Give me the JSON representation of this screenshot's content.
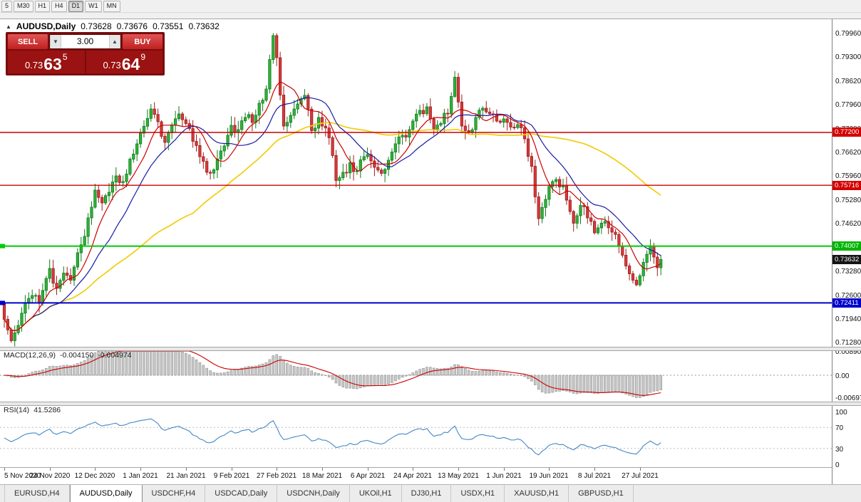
{
  "toolbar": {
    "timeframes": [
      "5",
      "M30",
      "H1",
      "H4",
      "D1",
      "W1",
      "MN"
    ],
    "active": "D1"
  },
  "header": {
    "collapse_icon": "▲",
    "title": "AUDUSD,Daily",
    "open": "0.73628",
    "high": "0.73676",
    "low": "0.73551",
    "close": "0.73632"
  },
  "one_click": {
    "sell_label": "SELL",
    "buy_label": "BUY",
    "volume": "3.00",
    "vol_down_icon": "▼",
    "vol_up_icon": "▲",
    "bid_main": "0.73",
    "bid_big": "63",
    "bid_sup": "5",
    "ask_main": "0.73",
    "ask_big": "64",
    "ask_sup": "9"
  },
  "price_axis": {
    "labels": [
      "0.79960",
      "0.79300",
      "0.78620",
      "0.77960",
      "0.77280",
      "0.76620",
      "0.75960",
      "0.75280",
      "0.74620",
      "0.73960",
      "0.73280",
      "0.72600",
      "0.71940",
      "0.71280"
    ],
    "tags": [
      {
        "text": "0.77200",
        "color": "#d40000"
      },
      {
        "text": "0.75716",
        "color": "#d40000"
      },
      {
        "text": "0.74007",
        "color": "#00b400"
      },
      {
        "text": "0.73632",
        "color": "#141414"
      },
      {
        "text": "0.72411",
        "color": "#0000cc"
      }
    ]
  },
  "macd_panel": {
    "title": "MACD(12,26,9)",
    "value_main": "-0.004150",
    "value_signal": "-0.004974",
    "axis_labels": [
      "0.008900",
      "0.00",
      "-0.00697"
    ]
  },
  "rsi_panel": {
    "title": "RSI(14)",
    "value": "41.5286",
    "axis_labels": [
      "100",
      "70",
      "30",
      "0"
    ]
  },
  "date_axis": {
    "labels": [
      "5 Nov 2020",
      "24 Nov 2020",
      "12 Dec 2020",
      "1 Jan 2021",
      "21 Jan 2021",
      "9 Feb 2021",
      "27 Feb 2021",
      "18 Mar 2021",
      "6 Apr 2021",
      "24 Apr 2021",
      "13 May 2021",
      "1 Jun 2021",
      "19 Jun 2021",
      "8 Jul 2021",
      "27 Jul 2021"
    ]
  },
  "tabs": {
    "items": [
      "EURUSD,H4",
      "AUDUSD,Daily",
      "USDCHF,H4",
      "USDCAD,Daily",
      "USDCNH,Daily",
      "UKOil,H1",
      "DJ30,H1",
      "USDX,H1",
      "XAUUSD,H1",
      "GBPUSD,H1"
    ],
    "active": "AUDUSD,Daily"
  },
  "chart_data": {
    "type": "candlestick",
    "title": "AUDUSD Daily",
    "current_ohlc": {
      "open": 0.73628,
      "high": 0.73676,
      "low": 0.73551,
      "close": 0.73632
    },
    "current_price": 0.73632,
    "price_range_visible": [
      0.7114,
      0.8036
    ],
    "h_lines": [
      {
        "price": 0.772,
        "color": "#cc0000",
        "width": 1.4,
        "marker": false
      },
      {
        "price": 0.75716,
        "color": "#cc0000",
        "width": 1.4,
        "marker": false
      },
      {
        "price": 0.74007,
        "color": "#00cc00",
        "width": 2,
        "marker": true
      },
      {
        "price": 0.72411,
        "color": "#0000cc",
        "width": 2,
        "marker": true
      }
    ],
    "candles_count": 189,
    "close_anchors": [
      [
        0,
        0.7195
      ],
      [
        2,
        0.7135
      ],
      [
        4,
        0.7178
      ],
      [
        6,
        0.724
      ],
      [
        8,
        0.7262
      ],
      [
        10,
        0.724
      ],
      [
        12,
        0.731
      ],
      [
        13,
        0.7338
      ],
      [
        15,
        0.7282
      ],
      [
        17,
        0.7325
      ],
      [
        19,
        0.7305
      ],
      [
        21,
        0.7382
      ],
      [
        23,
        0.7428
      ],
      [
        25,
        0.751
      ],
      [
        26,
        0.7558
      ],
      [
        28,
        0.7522
      ],
      [
        30,
        0.7552
      ],
      [
        32,
        0.7598
      ],
      [
        34,
        0.7582
      ],
      [
        36,
        0.7645
      ],
      [
        38,
        0.7688
      ],
      [
        39,
        0.7718
      ],
      [
        42,
        0.7786
      ],
      [
        44,
        0.775
      ],
      [
        46,
        0.7692
      ],
      [
        48,
        0.774
      ],
      [
        50,
        0.7772
      ],
      [
        52,
        0.7745
      ],
      [
        54,
        0.7695
      ],
      [
        56,
        0.7652
      ],
      [
        58,
        0.7608
      ],
      [
        60,
        0.7615
      ],
      [
        62,
        0.7668
      ],
      [
        64,
        0.7712
      ],
      [
        65,
        0.774
      ],
      [
        67,
        0.7728
      ],
      [
        69,
        0.7762
      ],
      [
        71,
        0.7748
      ],
      [
        73,
        0.7802
      ],
      [
        75,
        0.7842
      ],
      [
        77,
        0.7992
      ],
      [
        78,
        0.793
      ],
      [
        79,
        0.7825
      ],
      [
        80,
        0.7738
      ],
      [
        82,
        0.7768
      ],
      [
        84,
        0.78
      ],
      [
        86,
        0.7824
      ],
      [
        88,
        0.7725
      ],
      [
        90,
        0.7762
      ],
      [
        91,
        0.7738
      ],
      [
        93,
        0.7705
      ],
      [
        95,
        0.7585
      ],
      [
        97,
        0.7608
      ],
      [
        99,
        0.7635
      ],
      [
        101,
        0.7612
      ],
      [
        103,
        0.7652
      ],
      [
        104,
        0.7658
      ],
      [
        106,
        0.7622
      ],
      [
        108,
        0.7605
      ],
      [
        110,
        0.7642
      ],
      [
        112,
        0.7688
      ],
      [
        114,
        0.7712
      ],
      [
        116,
        0.7728
      ],
      [
        117,
        0.7752
      ],
      [
        119,
        0.7782
      ],
      [
        121,
        0.7792
      ],
      [
        123,
        0.7728
      ],
      [
        125,
        0.7745
      ],
      [
        127,
        0.7772
      ],
      [
        129,
        0.7875
      ],
      [
        131,
        0.7738
      ],
      [
        133,
        0.7722
      ],
      [
        135,
        0.7762
      ],
      [
        137,
        0.7788
      ],
      [
        139,
        0.7772
      ],
      [
        141,
        0.7752
      ],
      [
        143,
        0.7758
      ],
      [
        145,
        0.7735
      ],
      [
        147,
        0.7742
      ],
      [
        149,
        0.7702
      ],
      [
        151,
        0.7625
      ],
      [
        153,
        0.7478
      ],
      [
        155,
        0.7532
      ],
      [
        156,
        0.7568
      ],
      [
        158,
        0.7588
      ],
      [
        160,
        0.757
      ],
      [
        162,
        0.7498
      ],
      [
        163,
        0.7465
      ],
      [
        165,
        0.7515
      ],
      [
        167,
        0.748
      ],
      [
        169,
        0.7438
      ],
      [
        170,
        0.7452
      ],
      [
        172,
        0.747
      ],
      [
        174,
        0.744
      ],
      [
        176,
        0.74
      ],
      [
        178,
        0.7345
      ],
      [
        180,
        0.7305
      ],
      [
        181,
        0.7292
      ],
      [
        183,
        0.7355
      ],
      [
        185,
        0.74
      ],
      [
        186,
        0.737
      ],
      [
        187,
        0.734
      ],
      [
        188,
        0.73632
      ]
    ],
    "noise": 0.0016,
    "seed": 11,
    "ma_periods": {
      "fast": 8,
      "mid": 17,
      "slow": 55
    },
    "macd_params": [
      12,
      26,
      9
    ],
    "rsi_period": 14,
    "date_ticks": [
      0,
      13,
      26,
      39,
      52,
      65,
      78,
      91,
      104,
      117,
      130,
      143,
      156,
      169,
      182
    ],
    "colors": {
      "up_stroke": "#117a1c",
      "up_fill": "#2eb33a",
      "down_stroke": "#9e1c1c",
      "down_fill": "#d63a3a",
      "ma_fast": "#cc0000",
      "ma_mid": "#1a1aa6",
      "ma_slow": "#f2cc0f",
      "macd_hist_fill": "#c9c9c9",
      "macd_hist_stroke": "#8f8f8f",
      "macd_signal": "#cc0000",
      "rsi_line": "#4388c7"
    }
  }
}
